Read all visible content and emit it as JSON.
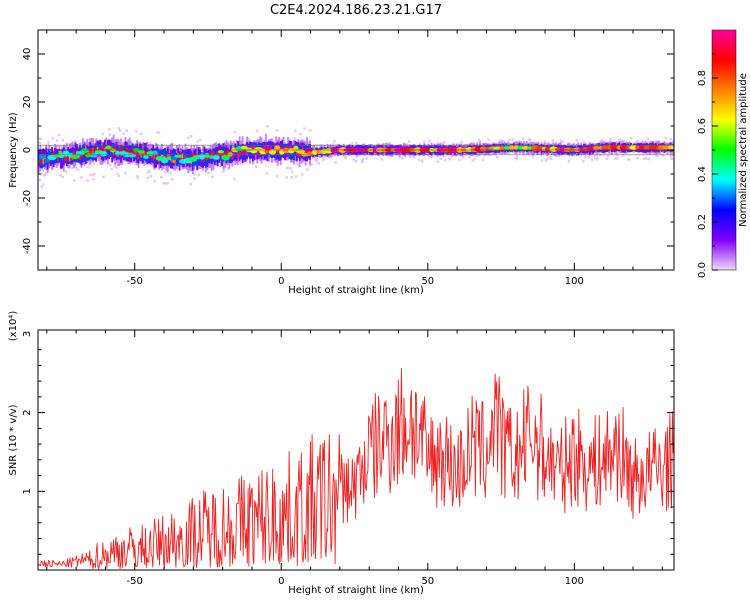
{
  "title": "C2E4.2024.186.23.21.G17",
  "chart_data": [
    {
      "type": "heatmap",
      "xlabel": "Height of straight line (km)",
      "ylabel": "Frequency (Hz)",
      "xlim": [
        -83,
        134
      ],
      "ylim": [
        -50,
        50
      ],
      "x_ticks": [
        -50,
        0,
        50,
        100
      ],
      "y_ticks": [
        -40,
        -20,
        0,
        20,
        40
      ],
      "colorbar": {
        "label": "Normalized spectral amplitude",
        "range": [
          0,
          1
        ],
        "ticks": [
          "0.0",
          "0.2",
          "0.4",
          "0.6",
          "0.8"
        ],
        "colors": [
          "#f0d8f8",
          "#8000ff",
          "#0000ff",
          "#00ffff",
          "#00ff00",
          "#ffff00",
          "#ff8000",
          "#ff0000",
          "#ff00a0"
        ]
      },
      "ridge": {
        "x": [
          -83,
          -70,
          -60,
          -50,
          -40,
          -30,
          -20,
          -10,
          0,
          10,
          20,
          40,
          60,
          80,
          100,
          110,
          134
        ],
        "frequency_hz": [
          -4,
          -2,
          0,
          -1,
          -3,
          -4,
          -2,
          0,
          0,
          -1,
          0,
          0,
          0,
          1,
          0,
          1,
          1
        ],
        "amplitude": [
          0.4,
          0.45,
          0.5,
          0.45,
          0.4,
          0.45,
          0.55,
          0.7,
          0.8,
          0.7,
          0.95,
          0.95,
          0.9,
          0.6,
          0.95,
          0.8,
          0.85
        ]
      }
    },
    {
      "type": "line",
      "xlabel": "Height of straight line (km)",
      "ylabel": "SNR (10 * v/v)",
      "y_multiplier": "(x10⁴)",
      "xlim": [
        -83,
        134
      ],
      "ylim": [
        0,
        3.05
      ],
      "x_ticks": [
        -50,
        0,
        50,
        100
      ],
      "y_ticks": [
        1,
        2,
        3
      ],
      "line_color": "#ee2222",
      "envelope": {
        "x": [
          -83,
          -75,
          -65,
          -55,
          -45,
          -35,
          -25,
          -15,
          -5,
          5,
          15,
          25,
          30,
          35,
          40,
          45,
          50,
          55,
          60,
          65,
          70,
          73,
          75,
          80,
          85,
          90,
          95,
          100,
          105,
          110,
          115,
          120,
          125,
          130,
          134
        ],
        "y": [
          0.1,
          0.08,
          0.2,
          0.35,
          0.4,
          0.55,
          0.7,
          0.8,
          0.9,
          1.0,
          1.2,
          1.3,
          1.8,
          2.0,
          2.2,
          2.3,
          1.7,
          1.8,
          1.5,
          1.9,
          1.8,
          2.5,
          1.9,
          1.7,
          2.1,
          1.8,
          1.5,
          1.8,
          1.6,
          1.7,
          1.9,
          1.4,
          1.5,
          1.6,
          1.7
        ]
      }
    }
  ]
}
